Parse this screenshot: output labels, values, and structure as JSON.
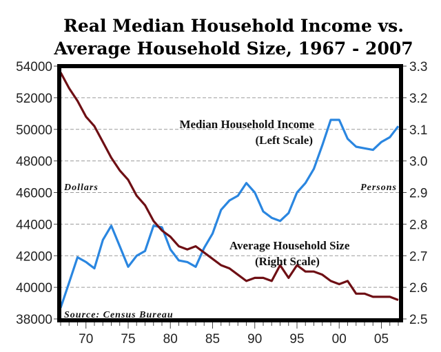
{
  "chart_data": {
    "type": "line",
    "title": [
      "Real Median Household Income vs.",
      "Average Household Size, 1967 - 2007"
    ],
    "x": [
      1967,
      1968,
      1969,
      1970,
      1971,
      1972,
      1973,
      1974,
      1975,
      1976,
      1977,
      1978,
      1979,
      1980,
      1981,
      1982,
      1983,
      1984,
      1985,
      1986,
      1987,
      1988,
      1989,
      1990,
      1991,
      1992,
      1993,
      1994,
      1995,
      1996,
      1997,
      1998,
      1999,
      2000,
      2001,
      2002,
      2003,
      2004,
      2005,
      2006,
      2007
    ],
    "xlim": [
      1967,
      2007
    ],
    "x_ticks": [
      1970,
      1975,
      1980,
      1985,
      1990,
      1995,
      2000,
      2005
    ],
    "x_tick_labels": [
      "70",
      "75",
      "80",
      "85",
      "90",
      "95",
      "00",
      "05"
    ],
    "left_axis": {
      "label": "Dollars",
      "ylim": [
        38000,
        54000
      ],
      "ticks": [
        38000,
        40000,
        42000,
        44000,
        46000,
        48000,
        50000,
        52000,
        54000
      ],
      "tick_labels": [
        "38000",
        "40000",
        "42000",
        "44000",
        "46000",
        "48000",
        "50000",
        "52000",
        "54000"
      ]
    },
    "right_axis": {
      "label": "Persons",
      "ylim": [
        2.5,
        3.3
      ],
      "ticks": [
        2.5,
        2.6,
        2.7,
        2.8,
        2.9,
        3.0,
        3.1,
        3.2,
        3.3
      ],
      "tick_labels": [
        "2.5",
        "2.6",
        "2.7",
        "2.8",
        "2.9",
        "3.0",
        "3.1",
        "3.2",
        "3.3"
      ]
    },
    "grid": "horizontal-dashed",
    "series": [
      {
        "name": "Median Household Income",
        "axis": "left",
        "label_lines": [
          "Median Household Income",
          "(Left Scale)"
        ],
        "color": "#2a86e0",
        "values": [
          38700,
          40300,
          41900,
          41600,
          41200,
          43000,
          43900,
          42600,
          41300,
          42000,
          42300,
          43900,
          43800,
          42400,
          41700,
          41600,
          41300,
          42500,
          43400,
          44900,
          45500,
          45800,
          46600,
          46000,
          44800,
          44400,
          44200,
          44700,
          46000,
          46600,
          47500,
          49000,
          50600,
          50600,
          49400,
          48900,
          48800,
          48700,
          49200,
          49500,
          50200
        ]
      },
      {
        "name": "Average Household Size",
        "axis": "right",
        "label_lines": [
          "Average Household Size",
          "(Right Scale)"
        ],
        "color": "#6e0f14",
        "values": [
          3.28,
          3.23,
          3.19,
          3.14,
          3.11,
          3.06,
          3.01,
          2.97,
          2.94,
          2.89,
          2.86,
          2.81,
          2.78,
          2.76,
          2.73,
          2.72,
          2.73,
          2.71,
          2.69,
          2.67,
          2.66,
          2.64,
          2.62,
          2.63,
          2.63,
          2.62,
          2.67,
          2.63,
          2.67,
          2.65,
          2.65,
          2.64,
          2.62,
          2.61,
          2.62,
          2.58,
          2.58,
          2.57,
          2.57,
          2.57,
          2.56
        ]
      }
    ],
    "annotations": {
      "source": "Source: Census Bureau"
    }
  }
}
